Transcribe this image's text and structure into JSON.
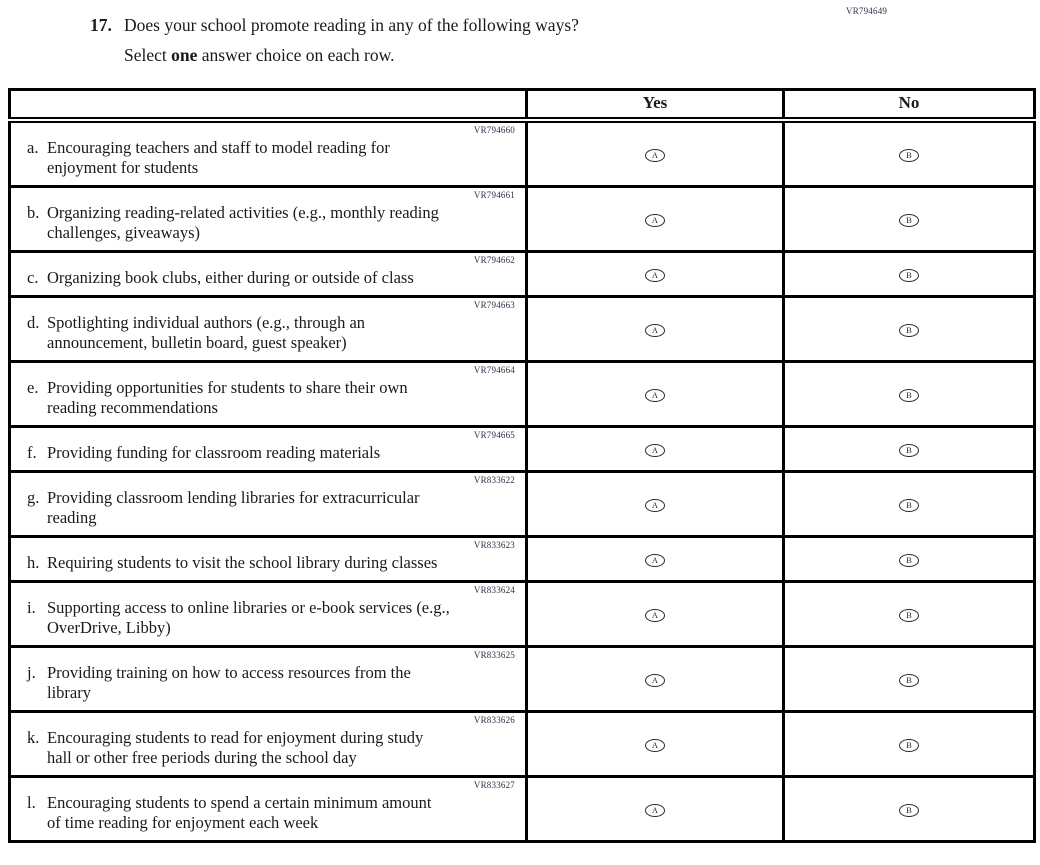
{
  "page": {
    "form_code": "VR794649",
    "question_number": "17.",
    "question_text": "Does your school promote reading in any of the following ways?",
    "instruction": {
      "prefix": "Select ",
      "bold_word": "one",
      "suffix": " answer choice on each row."
    }
  },
  "table": {
    "header": {
      "question_column": "",
      "yes": "Yes",
      "no": "No"
    },
    "yes_letter": "A",
    "no_letter": "B",
    "rows": [
      {
        "code": "VR794660",
        "letter": "a.",
        "text": "Encouraging teachers and staff to model reading for\nenjoyment for students"
      },
      {
        "code": "VR794661",
        "letter": "b.",
        "text": "Organizing reading-related activities (e.g., monthly reading\nchallenges, giveaways)"
      },
      {
        "code": "VR794662",
        "letter": "c.",
        "text": "Organizing book clubs, either during or outside of class"
      },
      {
        "code": "VR794663",
        "letter": "d.",
        "text": "Spotlighting individual authors (e.g., through an\nannouncement, bulletin board, guest speaker)"
      },
      {
        "code": "VR794664",
        "letter": "e.",
        "text": "Providing opportunities for students to share their own\nreading recommendations"
      },
      {
        "code": "VR794665",
        "letter": "f.",
        "text": "Providing funding for classroom reading materials"
      },
      {
        "code": "VR833622",
        "letter": "g.",
        "text": "Providing classroom lending libraries for extracurricular\nreading"
      },
      {
        "code": "VR833623",
        "letter": "h.",
        "text": "Requiring students to visit the school library during classes"
      },
      {
        "code": "VR833624",
        "letter": "i.",
        "text": "Supporting access to online libraries or e-book services (e.g.,\nOverDrive, Libby)"
      },
      {
        "code": "VR833625",
        "letter": "j.",
        "text": "Providing training on how to access resources from the\nlibrary"
      },
      {
        "code": "VR833626",
        "letter": "k.",
        "text": "Encouraging students to read for enjoyment during study\nhall or other free periods during the school day"
      },
      {
        "code": "VR833627",
        "letter": "l.",
        "text": "Encouraging students to spend a certain minimum amount\nof time reading for enjoyment each week"
      }
    ]
  }
}
